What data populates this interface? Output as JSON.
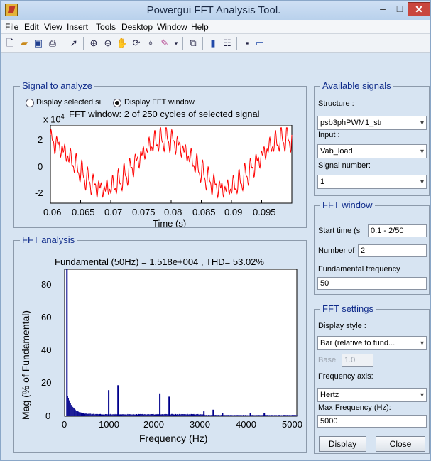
{
  "window": {
    "title": "Powergui FFT Analysis Tool.",
    "min": "–",
    "max": "□",
    "close": "✕"
  },
  "menu": [
    "File",
    "Edit",
    "View",
    "Insert",
    "Tools",
    "Desktop",
    "Window",
    "Help"
  ],
  "toolbar_icons": [
    "new-file-icon",
    "open-folder-icon",
    "save-icon",
    "print-icon",
    "pointer-icon",
    "zoom-in-icon",
    "zoom-out-icon",
    "pan-icon",
    "rotate-icon",
    "data-cursor-icon",
    "brush-icon",
    "link-icon",
    "colorbar-icon",
    "legend-icon",
    "hide-plot-icon",
    "show-plot-icon"
  ],
  "signal_panel": {
    "title": "Signal to analyze",
    "radio_selected_signal": "Display selected si",
    "radio_fft_window": "Display FFT window",
    "plot_title": "FFT window: 2 of 250 cycles of selected signal",
    "exponent": "x 10",
    "exponent_power": "4",
    "xlabel": "Time (s)",
    "xticks": [
      "0.06",
      "0.065",
      "0.07",
      "0.075",
      "0.08",
      "0.085",
      "0.09",
      "0.095"
    ],
    "yticks": [
      "2",
      "0",
      "-2"
    ]
  },
  "fft_panel": {
    "title": "FFT analysis",
    "summary": "Fundamental (50Hz) = 1.518e+004 , THD= 53.02%",
    "xlabel": "Frequency (Hz)",
    "ylabel": "Mag (% of Fundamental)",
    "xticks": [
      "0",
      "1000",
      "2000",
      "3000",
      "4000",
      "5000"
    ],
    "yticks": [
      "80",
      "60",
      "40",
      "20",
      "0"
    ]
  },
  "available_signals": {
    "title": "Available signals",
    "structure_label": "Structure :",
    "structure_value": "psb3phPWM1_str",
    "input_label": "Input :",
    "input_value": "Vab_load",
    "signal_number_label": "Signal number:",
    "signal_number_value": "1"
  },
  "fft_window": {
    "title": "FFT window",
    "start_time_label": "Start time (s",
    "start_time_value": "0.1 - 2/50",
    "number_of_label": "Number of",
    "number_of_value": "2",
    "fund_freq_label": "Fundamental frequency",
    "fund_freq_value": "50"
  },
  "fft_settings": {
    "title": "FFT settings",
    "display_style_label": "Display style :",
    "display_style_value": "Bar (relative to fund...",
    "base_label": "Base",
    "base_value": "1.0",
    "freq_axis_label": "Frequency axis:",
    "freq_axis_value": "Hertz",
    "max_freq_label": "Max Frequency (Hz):",
    "max_freq_value": "5000"
  },
  "buttons": {
    "display": "Display",
    "close": "Close"
  },
  "chart_data": [
    {
      "type": "line",
      "title": "FFT window: 2 of 250 cycles of selected signal",
      "xlabel": "Time (s)",
      "ylabel": "",
      "y_scale_factor": "x 10^4",
      "xlim": [
        0.06,
        0.1
      ],
      "ylim": [
        -3,
        3
      ],
      "series": [
        {
          "color": "#ff0000",
          "fundamental_hz": 50,
          "amplitude": 1.518,
          "x_range": [
            0.06,
            0.1
          ]
        }
      ]
    },
    {
      "type": "bar",
      "title": "Fundamental (50Hz) = 1.518e+004 , THD= 53.02%",
      "xlabel": "Frequency (Hz)",
      "ylabel": "Mag (% of Fundamental)",
      "xlim": [
        0,
        5000
      ],
      "ylim": [
        0,
        90
      ],
      "color": "#00008b",
      "peaks": [
        {
          "x": 50,
          "y": 100
        },
        {
          "x": 950,
          "y": 16
        },
        {
          "x": 1150,
          "y": 19
        },
        {
          "x": 2050,
          "y": 14
        },
        {
          "x": 2250,
          "y": 12
        },
        {
          "x": 3000,
          "y": 3
        },
        {
          "x": 3200,
          "y": 4
        },
        {
          "x": 3400,
          "y": 2
        },
        {
          "x": 4000,
          "y": 2
        },
        {
          "x": 4300,
          "y": 2
        }
      ]
    }
  ]
}
